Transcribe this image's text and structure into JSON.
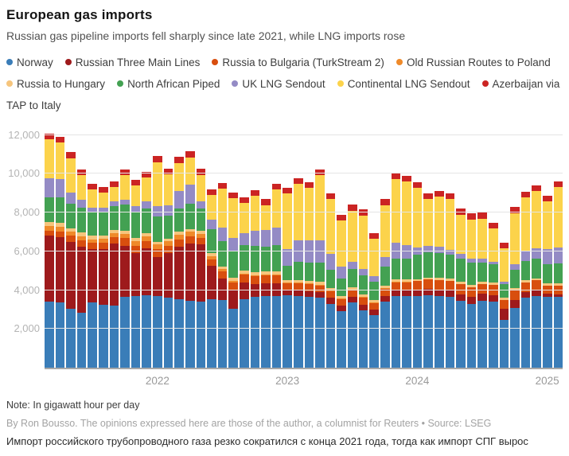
{
  "header": {
    "title": "European gas imports",
    "subtitle": "Russian gas pipeline imports fell sharply since late 2021, while LNG imports rose"
  },
  "footer": {
    "note": "Note: In gigawatt hour per day",
    "byline": "By Ron Bousso. The opinions expressed here are those of the author, a columnist for Reuters • Source: LSEG",
    "russian_caption": "Импорт российского трубопроводного газа резко сократился с конца 2021 года, тогда как импорт СПГ вырос"
  },
  "chart_data": {
    "type": "bar",
    "stacked": true,
    "title": "European gas imports",
    "unit": "gigawatt hour per day",
    "grid": "horizontal",
    "ylim": [
      0,
      12400
    ],
    "yticks": [
      2000,
      4000,
      6000,
      8000,
      10000,
      12000
    ],
    "x": [
      "2021-03",
      "2021-04",
      "2021-05",
      "2021-06",
      "2021-07",
      "2021-08",
      "2021-09",
      "2021-10",
      "2021-11",
      "2021-12",
      "2022-01",
      "2022-02",
      "2022-03",
      "2022-04",
      "2022-05",
      "2022-06",
      "2022-07",
      "2022-08",
      "2022-09",
      "2022-10",
      "2022-11",
      "2022-12",
      "2023-01",
      "2023-02",
      "2023-03",
      "2023-04",
      "2023-05",
      "2023-06",
      "2023-07",
      "2023-08",
      "2023-09",
      "2023-10",
      "2023-11",
      "2023-12",
      "2024-01",
      "2024-02",
      "2024-03",
      "2024-04",
      "2024-05",
      "2024-06",
      "2024-07",
      "2024-08",
      "2024-09",
      "2024-10",
      "2024-11",
      "2024-12",
      "2025-01",
      "2025-02"
    ],
    "year_ticks": [
      {
        "label": "2022",
        "index": 10
      },
      {
        "label": "2023",
        "index": 22
      },
      {
        "label": "2024",
        "index": 34
      },
      {
        "label": "2025",
        "index": 46
      }
    ],
    "series": [
      {
        "name": "Norway",
        "color": "#3a7db8",
        "values": [
          3400,
          3350,
          3050,
          2850,
          3350,
          3250,
          3200,
          3650,
          3700,
          3750,
          3700,
          3600,
          3550,
          3450,
          3400,
          3550,
          3500,
          3050,
          3550,
          3650,
          3700,
          3700,
          3720,
          3700,
          3650,
          3600,
          3300,
          2900,
          3350,
          2950,
          2700,
          3400,
          3700,
          3700,
          3700,
          3750,
          3700,
          3650,
          3450,
          3300,
          3450,
          3400,
          2450,
          3100,
          3600,
          3700,
          3650,
          3650
        ]
      },
      {
        "name": "Russian Three Main Lines",
        "color": "#9e1a1c",
        "values": [
          3400,
          3400,
          3450,
          3400,
          2750,
          2850,
          3200,
          2650,
          2200,
          2400,
          2000,
          2300,
          2700,
          2950,
          2950,
          1700,
          1100,
          950,
          850,
          650,
          650,
          650,
          300,
          300,
          310,
          300,
          300,
          290,
          290,
          290,
          280,
          290,
          300,
          300,
          310,
          310,
          320,
          330,
          340,
          340,
          350,
          350,
          600,
          400,
          300,
          300,
          150,
          120
        ]
      },
      {
        "name": "Russia to Bulgaria (TurkStream 2)",
        "color": "#d84e0e",
        "values": [
          280,
          280,
          300,
          320,
          330,
          350,
          350,
          380,
          380,
          380,
          400,
          380,
          380,
          380,
          350,
          350,
          380,
          400,
          400,
          420,
          420,
          420,
          330,
          340,
          340,
          350,
          350,
          350,
          360,
          360,
          360,
          370,
          380,
          380,
          450,
          480,
          500,
          500,
          520,
          520,
          530,
          530,
          450,
          500,
          500,
          520,
          450,
          480
        ]
      },
      {
        "name": "Old Russian Routes to Poland",
        "color": "#ef8a2a",
        "values": [
          250,
          250,
          220,
          220,
          200,
          200,
          200,
          220,
          250,
          250,
          250,
          230,
          230,
          230,
          200,
          150,
          100,
          80,
          60,
          50,
          50,
          50,
          40,
          40,
          40,
          40,
          40,
          40,
          40,
          40,
          40,
          40,
          40,
          40,
          -60,
          -60,
          0,
          -60,
          0,
          -60,
          0,
          -60,
          -60,
          -60,
          0,
          -60,
          0,
          -60
        ]
      },
      {
        "name": "Russia to Hungary",
        "color": "#f6c57d",
        "values": [
          200,
          200,
          180,
          180,
          170,
          170,
          150,
          150,
          150,
          150,
          150,
          150,
          150,
          150,
          150,
          150,
          150,
          150,
          150,
          150,
          140,
          140,
          130,
          130,
          130,
          130,
          130,
          120,
          120,
          120,
          110,
          120,
          120,
          120,
          110,
          110,
          110,
          110,
          110,
          110,
          100,
          100,
          100,
          100,
          100,
          100,
          90,
          90
        ]
      },
      {
        "name": "North African Piped",
        "color": "#43a152",
        "values": [
          1250,
          1300,
          1250,
          1300,
          1200,
          1200,
          1250,
          1350,
          1350,
          1300,
          1300,
          1200,
          1200,
          1300,
          1150,
          1250,
          1300,
          1350,
          1300,
          1350,
          1300,
          1350,
          750,
          950,
          950,
          1000,
          950,
          900,
          950,
          1000,
          950,
          1000,
          1100,
          1100,
          1250,
          1300,
          1300,
          1250,
          1200,
          1150,
          1000,
          950,
          700,
          950,
          1000,
          1000,
          1000,
          1050
        ]
      },
      {
        "name": "UK LNG Sendout",
        "color": "#948bc5",
        "values": [
          1000,
          950,
          600,
          400,
          250,
          250,
          250,
          250,
          300,
          350,
          550,
          500,
          900,
          1000,
          400,
          500,
          700,
          700,
          650,
          800,
          850,
          900,
          850,
          1100,
          1150,
          1150,
          800,
          600,
          350,
          350,
          300,
          500,
          800,
          700,
          400,
          350,
          300,
          250,
          250,
          200,
          200,
          150,
          150,
          300,
          500,
          550,
          800,
          820
        ]
      },
      {
        "name": "Continental LNG Sendout",
        "color": "#fcd34b",
        "values": [
          2000,
          1890,
          1760,
          1250,
          940,
          760,
          720,
          1270,
          1070,
          1220,
          2260,
          1600,
          1460,
          1400,
          1360,
          1260,
          2000,
          2070,
          1550,
          1800,
          1280,
          1980,
          2880,
          2920,
          2700,
          3350,
          2840,
          2380,
          2640,
          2750,
          1910,
          2670,
          3280,
          3260,
          3050,
          2410,
          2600,
          2620,
          2030,
          2040,
          2070,
          1690,
          1710,
          2630,
          2790,
          2940,
          2450,
          3100
        ]
      },
      {
        "name": "Azerbaijan via TAP to Italy",
        "color": "#cb2423",
        "values": [
          300,
          300,
          300,
          300,
          300,
          300,
          300,
          300,
          300,
          300,
          300,
          300,
          300,
          300,
          300,
          300,
          300,
          300,
          300,
          300,
          300,
          300,
          300,
          300,
          300,
          300,
          300,
          300,
          300,
          300,
          300,
          300,
          300,
          300,
          300,
          300,
          300,
          300,
          300,
          300,
          300,
          300,
          300,
          300,
          300,
          300,
          300,
          300
        ]
      }
    ]
  }
}
